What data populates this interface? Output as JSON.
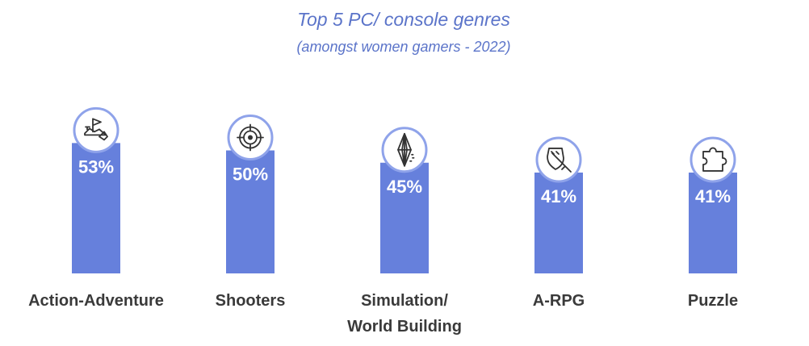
{
  "colors": {
    "bar": "#6680dc",
    "title": "#5b74c9",
    "icon_ring": "#8fa3ea",
    "label": "#3a3a3a",
    "value_label": "#ffffff"
  },
  "chart_data": {
    "type": "bar",
    "title": "Top 5 PC/ console genres",
    "subtitle": "(amongst women gamers - 2022)",
    "categories": [
      [
        "Action-Adventure"
      ],
      [
        "Shooters"
      ],
      [
        "Simulation/",
        "World Building"
      ],
      [
        "A-RPG"
      ],
      [
        "Puzzle"
      ]
    ],
    "values": [
      53,
      50,
      45,
      41,
      41
    ],
    "value_labels": [
      "53%",
      "50%",
      "45%",
      "41%",
      "41%"
    ],
    "icons": [
      "flag-landmark-icon",
      "crosshair-target-icon",
      "plumbob-diamond-icon",
      "shield-sword-icon",
      "puzzle-piece-icon"
    ],
    "unit": "%",
    "ylim": [
      0,
      100
    ],
    "grid": false,
    "legend": "none"
  }
}
